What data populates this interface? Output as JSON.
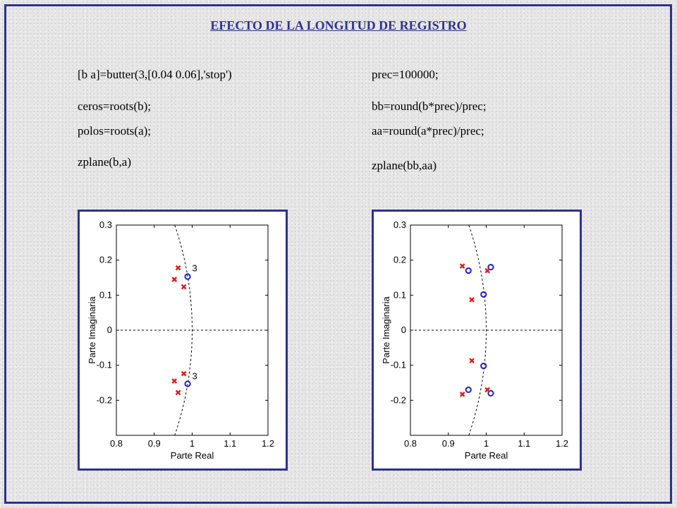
{
  "title": "EFECTO DE LA LONGITUD DE REGISTRO",
  "code_left": [
    "[b a]=butter(3,[0.04 0.06],'stop')",
    "ceros=roots(b);",
    "polos=roots(a);",
    "zplane(b,a)"
  ],
  "code_right": [
    "prec=100000;",
    "bb=round(b*prec)/prec;",
    "aa=round(a*prec)/prec;",
    "zplane(bb,aa)"
  ],
  "colors": {
    "frame": "#2e3192",
    "zeros": "#1f1fcc",
    "poles": "#e01b1b",
    "unit_circle": "#000000"
  },
  "chart_data": [
    {
      "type": "scatter",
      "title": "",
      "xlabel": "Parte Real",
      "ylabel": "Parte Imaginaria",
      "xlim": [
        0.8,
        1.2
      ],
      "ylim": [
        -0.3,
        0.3
      ],
      "xticks": [
        "0.8",
        "0.9",
        "1",
        "1.1",
        "1.2"
      ],
      "yticks": [
        "0.3",
        "0.2",
        "0.1",
        "0",
        "-0.1",
        "-0.2"
      ],
      "grid": false,
      "series": [
        {
          "name": "zeros",
          "marker": "o",
          "points": [
            [
              0.988,
              0.153
            ],
            [
              0.988,
              -0.153
            ]
          ]
        },
        {
          "name": "poles",
          "marker": "x",
          "points": [
            [
              0.963,
              0.178
            ],
            [
              0.953,
              0.145
            ],
            [
              0.978,
              0.124
            ],
            [
              0.978,
              -0.124
            ],
            [
              0.953,
              -0.145
            ],
            [
              0.963,
              -0.178
            ]
          ]
        }
      ],
      "annotations": [
        {
          "text": "3",
          "x": 1.0,
          "y": 0.168
        },
        {
          "text": "3",
          "x": 1.0,
          "y": -0.14
        }
      ]
    },
    {
      "type": "scatter",
      "title": "",
      "xlabel": "Parte Real",
      "ylabel": "Parte Imaginaria",
      "xlim": [
        0.8,
        1.2
      ],
      "ylim": [
        -0.3,
        0.3
      ],
      "xticks": [
        "0.8",
        "0.9",
        "1",
        "1.1",
        "1.2"
      ],
      "yticks": [
        "0.3",
        "0.2",
        "0.1",
        "0",
        "-0.1",
        "-0.2"
      ],
      "grid": false,
      "series": [
        {
          "name": "zeros",
          "marker": "o",
          "points": [
            [
              1.012,
              0.18
            ],
            [
              0.953,
              0.17
            ],
            [
              0.993,
              0.102
            ],
            [
              0.993,
              -0.102
            ],
            [
              0.953,
              -0.17
            ],
            [
              1.012,
              -0.18
            ]
          ]
        },
        {
          "name": "poles",
          "marker": "x",
          "points": [
            [
              0.937,
              0.183
            ],
            [
              1.003,
              0.17
            ],
            [
              0.962,
              0.087
            ],
            [
              0.962,
              -0.087
            ],
            [
              1.003,
              -0.17
            ],
            [
              0.937,
              -0.183
            ]
          ]
        }
      ],
      "annotations": []
    }
  ]
}
